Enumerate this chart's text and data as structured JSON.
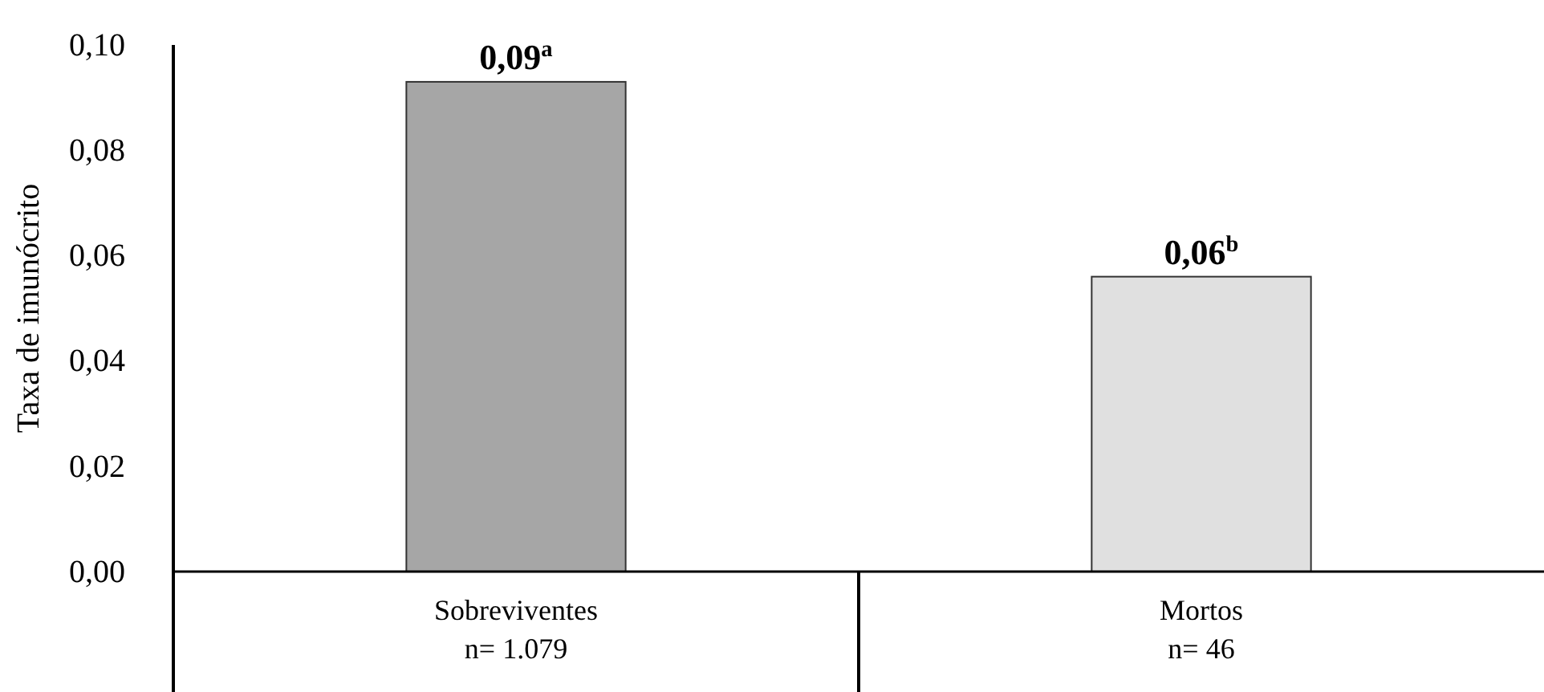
{
  "chart_data": {
    "type": "bar",
    "ylabel": "Taxa de imunócrito",
    "categories": [
      "Sobreviventes\nn= 1.079",
      "Mortos\nn= 46"
    ],
    "values": [
      0.093,
      0.056
    ],
    "colors": [
      "#a6a6a6",
      "#e0e0e0"
    ],
    "value_labels": [
      "0,09$^{a}$",
      "0,06$^{b}$"
    ],
    "ylim": [
      0,
      0.1
    ],
    "yticks": [
      {
        "value": 0,
        "label": "0,00"
      },
      {
        "value": 0.02,
        "label": "0,02"
      },
      {
        "value": 0.04,
        "label": "0,04"
      },
      {
        "value": 0.06,
        "label": "0,06"
      },
      {
        "value": 0.08,
        "label": "0,08"
      },
      {
        "value": 0.1,
        "label": "0,10"
      }
    ],
    "grid": false
  }
}
